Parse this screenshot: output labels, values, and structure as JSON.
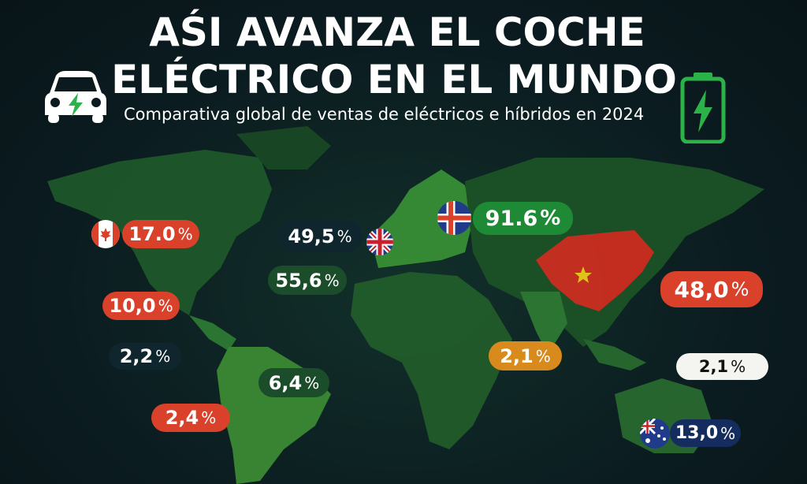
{
  "header": {
    "title_line1": "AŚI AVANZA EL COCHE",
    "title_line2": "ELÉCTRICO EN EL MUNDO",
    "subtitle": "Comparativa global de ventas de eléctricos e híbridos en 2024"
  },
  "icons": {
    "left": "electric-car-icon",
    "right": "battery-charging-icon"
  },
  "colors": {
    "red": "#d9412b",
    "green": "#1e8a35",
    "dark": "#10262e",
    "orange": "#d98a1c",
    "navy": "#152d5e",
    "map_green": "#2f7d33"
  },
  "badges": [
    {
      "value": "17.0",
      "unit": "%"
    },
    {
      "value": "49,5",
      "unit": "%"
    },
    {
      "value": "91.6",
      "unit": "%"
    },
    {
      "value": "55,6",
      "unit": "%"
    },
    {
      "value": "10,0",
      "unit": "%"
    },
    {
      "value": "2,2",
      "unit": "%"
    },
    {
      "value": "6,4",
      "unit": "%"
    },
    {
      "value": "2,4",
      "unit": "%"
    },
    {
      "value": "48,0",
      "unit": "%"
    },
    {
      "value": "2,1",
      "unit": "%"
    },
    {
      "value": "2,1",
      "unit": "%"
    },
    {
      "value": "13,0",
      "unit": "%"
    }
  ],
  "flags": [
    "canada",
    "united-kingdom",
    "iceland",
    "china",
    "australia"
  ]
}
